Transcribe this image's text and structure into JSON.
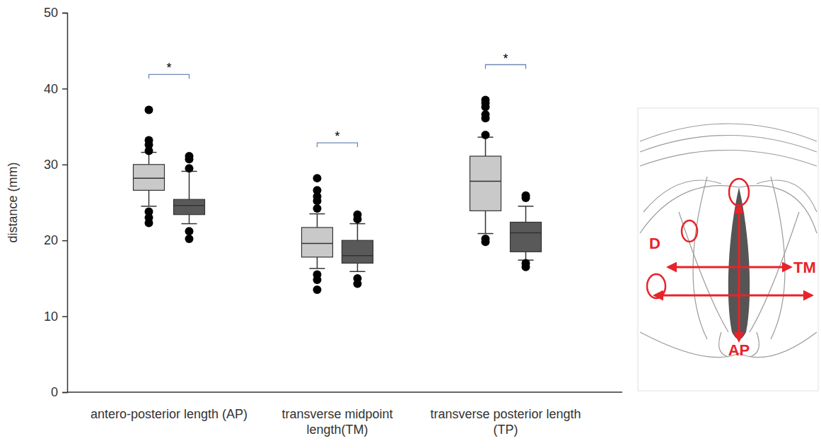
{
  "chart_data": {
    "type": "box",
    "y_label": "distance (mm)",
    "categories": [
      "antero-posterior length (AP)",
      "transverse midpoint length(TM)",
      "transverse posterior length (TP)"
    ],
    "ylim": [
      0,
      50
    ],
    "yticks": [
      0,
      10,
      20,
      30,
      40,
      50
    ],
    "significance": [
      "*",
      "*",
      "*"
    ],
    "series": [
      {
        "color": "#c9c9c9",
        "boxes": [
          {
            "whislo": 24.5,
            "q1": 26.6,
            "med": 28.2,
            "q3": 30.0,
            "whishi": 31.6,
            "fliers": [
              37.2,
              33.2,
              32.6,
              31.8,
              23.8,
              23.0,
              22.3
            ]
          },
          {
            "whislo": 16.3,
            "q1": 17.8,
            "med": 19.6,
            "q3": 21.7,
            "whishi": 23.5,
            "fliers": [
              28.2,
              26.6,
              25.8,
              25.2,
              24.2,
              15.5,
              14.8,
              13.5
            ]
          },
          {
            "whislo": 20.9,
            "q1": 23.9,
            "med": 27.8,
            "q3": 31.1,
            "whishi": 33.6,
            "fliers": [
              38.5,
              38.1,
              37.6,
              36.6,
              36.1,
              33.9,
              20.2,
              19.8
            ]
          }
        ]
      },
      {
        "color": "#595959",
        "boxes": [
          {
            "whislo": 22.2,
            "q1": 23.4,
            "med": 24.6,
            "q3": 25.4,
            "whishi": 29.1,
            "fliers": [
              31.1,
              30.7,
              29.5,
              21.2,
              20.2
            ]
          },
          {
            "whislo": 15.9,
            "q1": 17.0,
            "med": 18.0,
            "q3": 20.0,
            "whishi": 22.2,
            "fliers": [
              23.4,
              22.8,
              15.0,
              14.3
            ]
          },
          {
            "whislo": 17.4,
            "q1": 18.5,
            "med": 21.0,
            "q3": 22.4,
            "whishi": 24.5,
            "fliers": [
              25.9,
              25.6,
              17.0,
              16.5
            ]
          }
        ]
      }
    ],
    "diagram": {
      "labels": [
        "D",
        "TM",
        "AP"
      ]
    }
  }
}
